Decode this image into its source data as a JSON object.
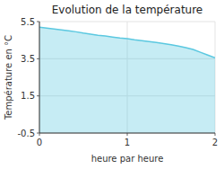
{
  "chart_data": {
    "type": "area",
    "title": "Evolution de la température",
    "xlabel": "heure par heure",
    "ylabel": "Température en °C",
    "x": [
      0.0,
      0.083,
      0.167,
      0.25,
      0.333,
      0.417,
      0.5,
      0.583,
      0.667,
      0.75,
      0.833,
      0.917,
      1.0,
      1.083,
      1.167,
      1.25,
      1.333,
      1.417,
      1.5,
      1.583,
      1.667,
      1.75,
      1.833,
      1.917,
      2.0
    ],
    "values": [
      5.2,
      5.15,
      5.1,
      5.05,
      5.0,
      4.95,
      4.88,
      4.82,
      4.76,
      4.72,
      4.67,
      4.62,
      4.58,
      4.52,
      4.47,
      4.42,
      4.37,
      4.32,
      4.25,
      4.18,
      4.1,
      4.0,
      3.85,
      3.7,
      3.55
    ],
    "color": "#5bc8e0",
    "xlim": [
      0,
      2
    ],
    "ylim": [
      -0.5,
      5.5
    ],
    "xticks": [
      0,
      1,
      2
    ],
    "yticks": [
      -0.5,
      1.5,
      3.5,
      5.5
    ],
    "grid": true
  }
}
